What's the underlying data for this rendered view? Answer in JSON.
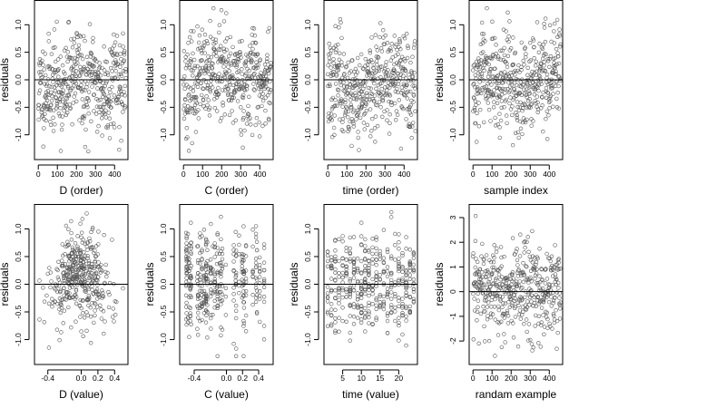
{
  "chart_data": [
    {
      "type": "scatter",
      "xlabel": "D (order)",
      "ylabel": "residuals",
      "xlim": [
        -20,
        470
      ],
      "ylim": [
        -1.45,
        1.45
      ],
      "xticks": [
        0,
        100,
        200,
        300,
        400
      ],
      "xtick_labels": [
        "0",
        "100",
        "200",
        "300",
        "400"
      ],
      "yticks": [
        -1,
        -0.5,
        0,
        0.5,
        1
      ],
      "ytick_labels": [
        "-1.0",
        "-0.5",
        "0.0",
        "0.5",
        "1.0"
      ],
      "hline": 0,
      "n": 460,
      "pattern": "order",
      "seed": 11
    },
    {
      "type": "scatter",
      "xlabel": "C (order)",
      "ylabel": "residuals",
      "xlim": [
        -20,
        470
      ],
      "ylim": [
        -1.45,
        1.45
      ],
      "xticks": [
        0,
        100,
        200,
        300,
        400
      ],
      "xtick_labels": [
        "0",
        "100",
        "200",
        "300",
        "400"
      ],
      "yticks": [
        -1,
        -0.5,
        0,
        0.5,
        1
      ],
      "ytick_labels": [
        "-1.0",
        "-0.5",
        "0.0",
        "0.5",
        "1.0"
      ],
      "hline": 0,
      "n": 460,
      "pattern": "order",
      "seed": 23
    },
    {
      "type": "scatter",
      "xlabel": "time (order)",
      "ylabel": "residuals",
      "xlim": [
        -20,
        470
      ],
      "ylim": [
        -1.45,
        1.45
      ],
      "xticks": [
        0,
        100,
        200,
        300,
        400
      ],
      "xtick_labels": [
        "0",
        "100",
        "200",
        "300",
        "400"
      ],
      "yticks": [
        -1,
        -0.5,
        0,
        0.5,
        1
      ],
      "ytick_labels": [
        "-1.0",
        "-0.5",
        "0.0",
        "0.5",
        "1.0"
      ],
      "hline": 0,
      "n": 460,
      "pattern": "order",
      "seed": 37
    },
    {
      "type": "scatter",
      "xlabel": "sample index",
      "ylabel": "residuals",
      "xlim": [
        -20,
        470
      ],
      "ylim": [
        -1.45,
        1.45
      ],
      "xticks": [
        0,
        100,
        200,
        300,
        400
      ],
      "xtick_labels": [
        "0",
        "100",
        "200",
        "300",
        "400"
      ],
      "yticks": [
        -1,
        -0.5,
        0,
        0.5,
        1
      ],
      "ytick_labels": [
        "-1.0",
        "-0.5",
        "0.0",
        "0.5",
        "1.0"
      ],
      "hline": 0,
      "n": 460,
      "pattern": "order",
      "seed": 41
    },
    {
      "type": "scatter",
      "xlabel": "D (value)",
      "ylabel": "residuals",
      "xlim": [
        -0.56,
        0.56
      ],
      "ylim": [
        -1.45,
        1.45
      ],
      "xticks": [
        -0.4,
        0,
        0.2,
        0.4
      ],
      "xtick_labels": [
        "-0.4",
        "0.0",
        "0.2",
        "0.4"
      ],
      "yticks": [
        -1,
        -0.5,
        0,
        0.5,
        1
      ],
      "ytick_labels": [
        "-1.0",
        "-0.5",
        "0.0",
        "0.5",
        "1.0"
      ],
      "hline": 0,
      "n": 400,
      "pattern": "value-D",
      "seed": 53
    },
    {
      "type": "scatter",
      "xlabel": "C (value)",
      "ylabel": "residuals",
      "xlim": [
        -0.58,
        0.58
      ],
      "ylim": [
        -1.45,
        1.45
      ],
      "xticks": [
        -0.4,
        0,
        0.2,
        0.4
      ],
      "xtick_labels": [
        "-0.4",
        "0.0",
        "0.2",
        "0.4"
      ],
      "yticks": [
        -1,
        -0.5,
        0,
        0.5,
        1
      ],
      "ytick_labels": [
        "-1.0",
        "-0.5",
        "0.0",
        "0.5",
        "1.0"
      ],
      "hline": 0,
      "n": 400,
      "pattern": "value-C",
      "seed": 67
    },
    {
      "type": "scatter",
      "xlabel": "time (value)",
      "ylabel": "residuals",
      "xlim": [
        0,
        25
      ],
      "ylim": [
        -1.45,
        1.45
      ],
      "xticks": [
        5,
        10,
        15,
        20
      ],
      "xtick_labels": [
        "5",
        "10",
        "15",
        "20"
      ],
      "yticks": [
        -1,
        -0.5,
        0,
        0.5,
        1
      ],
      "ytick_labels": [
        "-1.0",
        "-0.5",
        "0.0",
        "0.5",
        "1.0"
      ],
      "hline": 0,
      "n": 420,
      "pattern": "value-time",
      "seed": 79
    },
    {
      "type": "scatter",
      "xlabel": "randam example",
      "ylabel": "residuals",
      "xlim": [
        -20,
        470
      ],
      "ylim": [
        -2.95,
        3.55
      ],
      "xticks": [
        0,
        100,
        200,
        300,
        400
      ],
      "xtick_labels": [
        "0",
        "100",
        "200",
        "300",
        "400"
      ],
      "yticks": [
        -2,
        -1,
        0,
        1,
        2,
        3
      ],
      "ytick_labels": [
        "-2",
        "-1",
        "0",
        "1",
        "2",
        "3"
      ],
      "hline": 0,
      "n": 460,
      "pattern": "random",
      "seed": 97
    }
  ]
}
